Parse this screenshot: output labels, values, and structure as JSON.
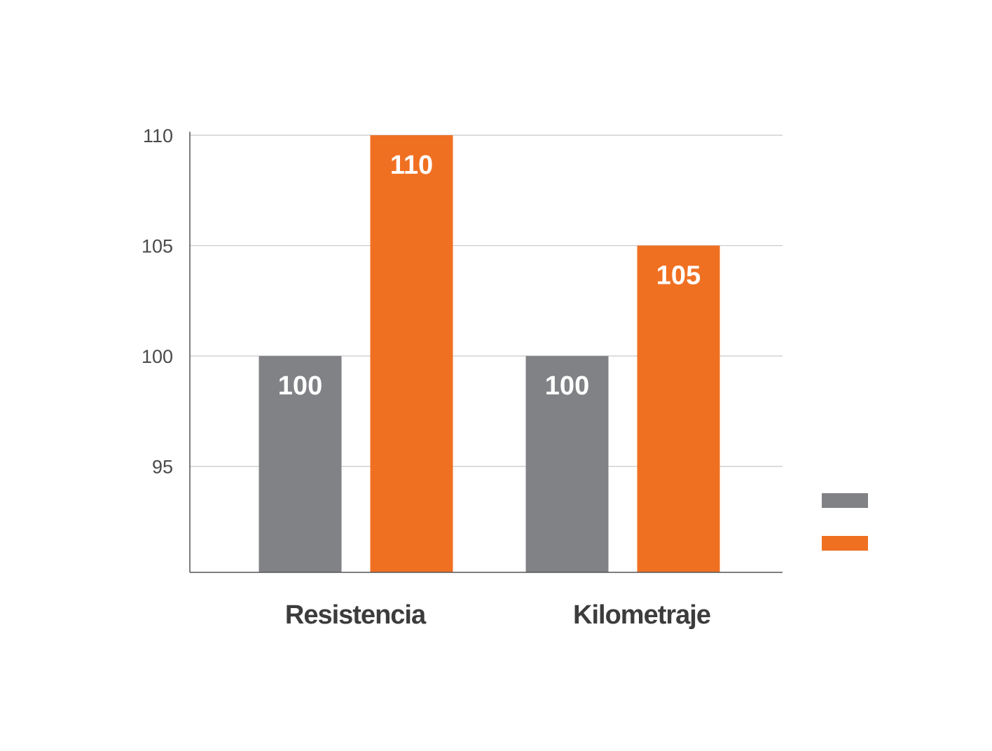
{
  "chart_data": {
    "type": "bar",
    "categories": [
      "Resistencia",
      "Kilometraje"
    ],
    "series": [
      {
        "values": [
          100,
          100
        ],
        "color": "#808285"
      },
      {
        "values": [
          110,
          105
        ],
        "color": "#f07022"
      }
    ],
    "data_labels": [
      [
        "100",
        "100"
      ],
      [
        "110",
        "105"
      ]
    ],
    "yticks": [
      "95",
      "100",
      "105",
      "110"
    ],
    "ylim": [
      90.2,
      110
    ],
    "grid": true,
    "legend_placement": "right",
    "colors": {
      "grid": "#c8c8c8",
      "axis": "#555555"
    }
  }
}
